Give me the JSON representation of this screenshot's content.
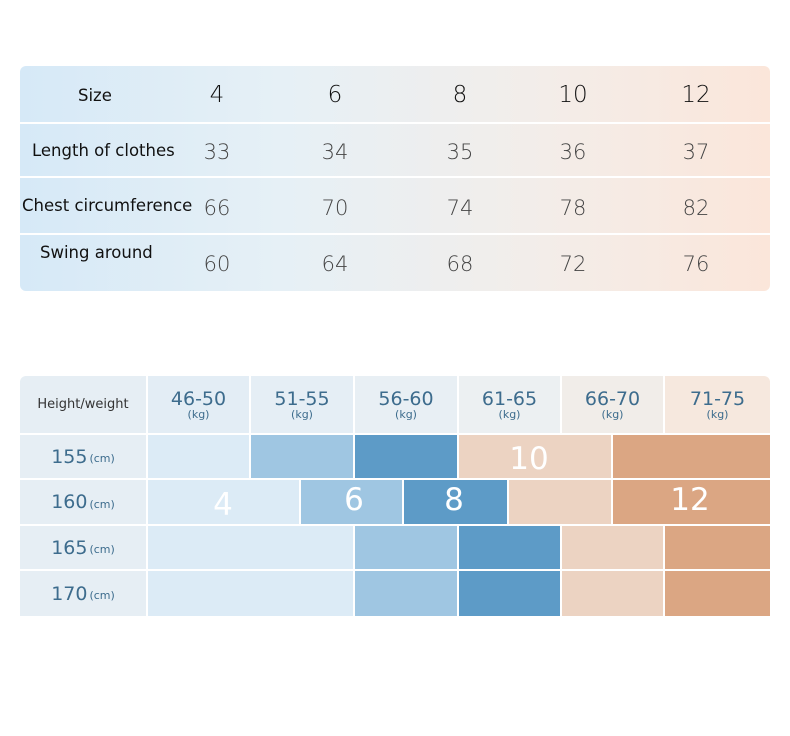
{
  "size_table": {
    "header": {
      "label": "Size",
      "sizes": [
        "4",
        "6",
        "8",
        "10",
        "12"
      ]
    },
    "rows": [
      {
        "label": "Length of clothes",
        "values": [
          "33",
          "34",
          "35",
          "36",
          "37"
        ]
      },
      {
        "label": "Chest circumference",
        "values": [
          "66",
          "70",
          "74",
          "78",
          "82"
        ]
      },
      {
        "label": "Swing around",
        "values": [
          "60",
          "64",
          "68",
          "72",
          "76"
        ]
      }
    ]
  },
  "height_weight_chart": {
    "corner_label": "Height/weight",
    "weight_ranges": [
      "46-50",
      "51-55",
      "56-60",
      "61-65",
      "66-70",
      "71-75"
    ],
    "weight_unit": "(kg)",
    "heights": [
      "155",
      "160",
      "165",
      "170"
    ],
    "height_unit": "(cm)",
    "size_labels": [
      "4",
      "6",
      "8",
      "10",
      "12"
    ],
    "colors": {
      "size_4": "#dcebf6",
      "size_6": "#9fc6e2",
      "size_8": "#5d9bc7",
      "size_10": "#ecd3c2",
      "size_12": "#dba683",
      "header_bg": "#e6eef4"
    }
  }
}
